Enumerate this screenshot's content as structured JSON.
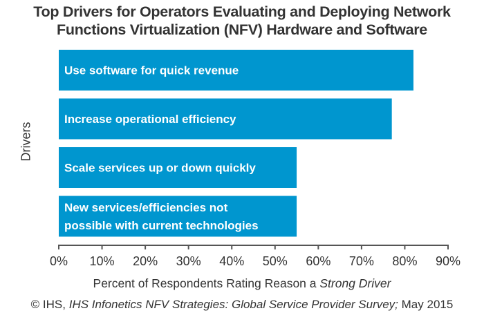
{
  "chart_data": {
    "type": "bar",
    "orientation": "horizontal",
    "title": "Top Drivers for Operators Evaluating and Deploying Network Functions Virtualization (NFV) Hardware and Software",
    "title_lines": [
      "Top Drivers for Operators Evaluating and Deploying Network",
      "Functions Virtualization (NFV) Hardware and Software"
    ],
    "categories": [
      "Use software for quick revenue",
      "Increase operational efficiency",
      "Scale services up or down quickly",
      "New services/efficiencies not possible with current technologies"
    ],
    "category_label_lines": [
      [
        "Use software for quick revenue"
      ],
      [
        "Increase operational efficiency"
      ],
      [
        "Scale services up or down quickly"
      ],
      [
        "New services/efficiencies not",
        "possible with current technologies"
      ]
    ],
    "values": [
      82,
      77,
      55,
      55
    ],
    "unit": "%",
    "xlabel_plain": "Percent of Respondents Rating Reason a ",
    "xlabel_italic": "Strong Driver",
    "ylabel": "Drivers",
    "xlim": [
      0,
      90
    ],
    "xticks": [
      0,
      10,
      20,
      30,
      40,
      50,
      60,
      70,
      80,
      90
    ],
    "xtick_labels": [
      "0%",
      "10%",
      "20%",
      "30%",
      "40%",
      "50%",
      "60%",
      "70%",
      "80%",
      "90%"
    ],
    "grid": false,
    "legend": "none",
    "bar_color": "#0096cf",
    "axis_color": "#555555"
  },
  "source": {
    "prefix": "© IHS, ",
    "italic": "IHS Infonetics NFV Strategies: Global Service Provider Survey;",
    "suffix": " May 2015"
  }
}
